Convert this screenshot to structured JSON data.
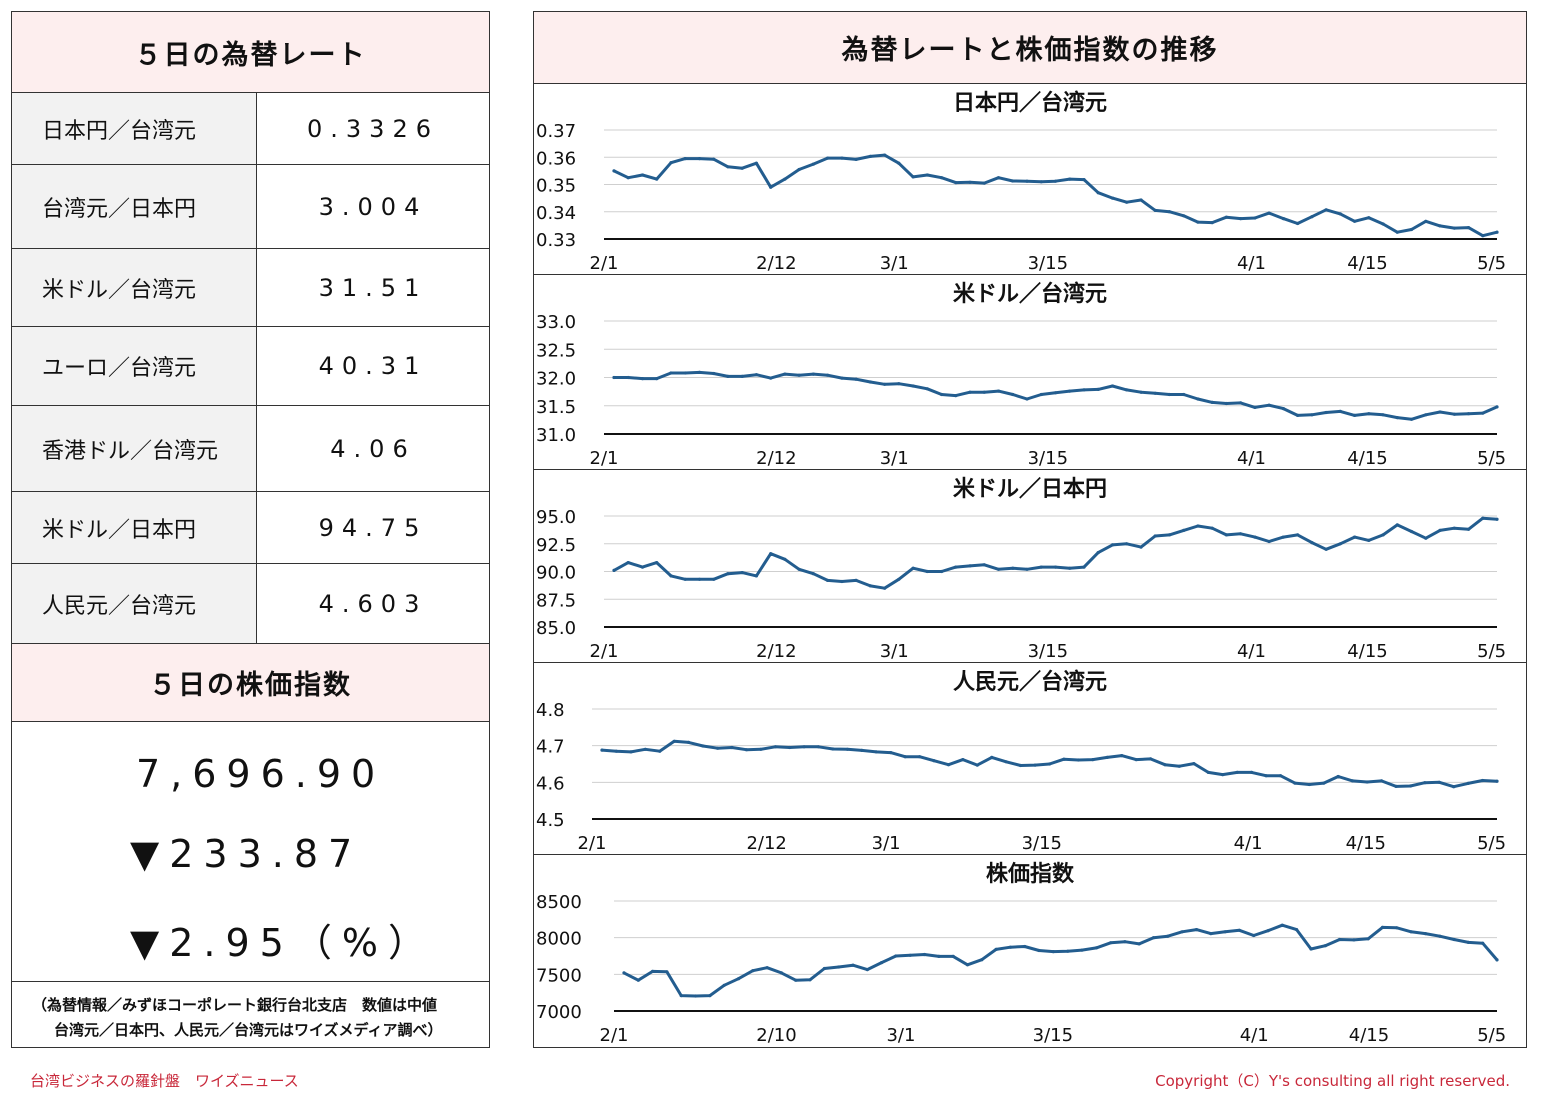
{
  "left": {
    "fx_title": "５日の為替レート",
    "rates": [
      {
        "name": "日本円／台湾元",
        "value": "0.3326"
      },
      {
        "name": "台湾元／日本円",
        "value": "3.004"
      },
      {
        "name": "米ドル／台湾元",
        "value": "31.51"
      },
      {
        "name": "ユーロ／台湾元",
        "value": "40.31"
      },
      {
        "name": "香港ドル／台湾元",
        "value": "4.06"
      },
      {
        "name": "米ドル／日本円",
        "value": "94.75"
      },
      {
        "name": "人民元／台湾元",
        "value": "4.603"
      }
    ],
    "stock_title": "５日の株価指数",
    "stock_value": "7,696.90",
    "stock_change": "▼233.87",
    "stock_pct": "▼2.95（%）",
    "source_line1": "（為替情報／みずほコーポレート銀行台北支店　数値は中値",
    "source_line2": "台湾元／日本円、人民元／台湾元はワイズメディア調べ）"
  },
  "right": {
    "title": "為替レートと株価指数の推移"
  },
  "footer": {
    "left": "台湾ビジネスの羅針盤　ワイズニュース",
    "right": "Copyright（C）Y's consulting all right reserved."
  },
  "colors": {
    "line": "#235d8f",
    "header_bg": "#fdeeee",
    "footer_text": "#c8283a"
  },
  "chart_data": [
    {
      "type": "line",
      "title": "日本円／台湾元",
      "x_ticks": [
        "2/1",
        "2/12",
        "3/1",
        "3/15",
        "4/1",
        "4/15",
        "5/5"
      ],
      "y_ticks": [
        "0.37",
        "0.36",
        "0.35",
        "0.34",
        "0.33"
      ],
      "ylim": [
        0.33,
        0.37
      ],
      "values": [
        0.355,
        0.3525,
        0.3535,
        0.352,
        0.358,
        0.3595,
        0.3595,
        0.3593,
        0.3565,
        0.356,
        0.3578,
        0.349,
        0.352,
        0.3555,
        0.3575,
        0.3597,
        0.3597,
        0.3592,
        0.3603,
        0.3608,
        0.3578,
        0.3528,
        0.3535,
        0.3525,
        0.3507,
        0.3508,
        0.3505,
        0.3525,
        0.3513,
        0.3512,
        0.351,
        0.3512,
        0.352,
        0.3518,
        0.347,
        0.345,
        0.3435,
        0.3443,
        0.3405,
        0.34,
        0.3385,
        0.3362,
        0.336,
        0.338,
        0.3375,
        0.3377,
        0.3395,
        0.3375,
        0.3357,
        0.3382,
        0.3407,
        0.3392,
        0.3365,
        0.3378,
        0.3355,
        0.3325,
        0.3335,
        0.3365,
        0.3348,
        0.334,
        0.3342,
        0.3312,
        0.3325
      ],
      "grid": true
    },
    {
      "type": "line",
      "title": "米ドル／台湾元",
      "x_ticks": [
        "2/1",
        "2/12",
        "3/1",
        "3/15",
        "4/1",
        "4/15",
        "5/5"
      ],
      "y_ticks": [
        "33.0",
        "32.5",
        "32.0",
        "31.5",
        "31.0"
      ],
      "ylim": [
        31.0,
        33.0
      ],
      "values": [
        32.0,
        32.0,
        31.98,
        31.98,
        32.08,
        32.08,
        32.09,
        32.07,
        32.02,
        32.02,
        32.05,
        31.99,
        32.06,
        32.04,
        32.06,
        32.04,
        31.99,
        31.97,
        31.92,
        31.88,
        31.89,
        31.85,
        31.8,
        31.7,
        31.68,
        31.74,
        31.74,
        31.76,
        31.7,
        31.62,
        31.7,
        31.73,
        31.76,
        31.78,
        31.79,
        31.85,
        31.78,
        31.74,
        31.72,
        31.7,
        31.7,
        31.62,
        31.56,
        31.54,
        31.55,
        31.47,
        31.51,
        31.45,
        31.33,
        31.34,
        31.38,
        31.4,
        31.33,
        31.36,
        31.34,
        31.29,
        31.26,
        31.34,
        31.39,
        31.35,
        31.36,
        31.37,
        31.48
      ],
      "grid": true
    },
    {
      "type": "line",
      "title": "米ドル／日本円",
      "x_ticks": [
        "2/1",
        "2/12",
        "3/1",
        "3/15",
        "4/1",
        "4/15",
        "5/5"
      ],
      "y_ticks": [
        "95.0",
        "92.5",
        "90.0",
        "87.5",
        "85.0"
      ],
      "ylim": [
        85.0,
        95.0
      ],
      "values": [
        90.1,
        90.8,
        90.4,
        90.8,
        89.6,
        89.3,
        89.3,
        89.3,
        89.8,
        89.9,
        89.6,
        91.6,
        91.1,
        90.2,
        89.8,
        89.2,
        89.1,
        89.2,
        88.7,
        88.5,
        89.3,
        90.3,
        90.0,
        90.0,
        90.4,
        90.5,
        90.6,
        90.2,
        90.3,
        90.2,
        90.4,
        90.4,
        90.3,
        90.4,
        91.7,
        92.4,
        92.5,
        92.2,
        93.2,
        93.3,
        93.7,
        94.1,
        93.9,
        93.3,
        93.4,
        93.1,
        92.7,
        93.1,
        93.3,
        92.6,
        92.0,
        92.5,
        93.1,
        92.8,
        93.3,
        94.2,
        93.6,
        93.0,
        93.7,
        93.9,
        93.8,
        94.8,
        94.7
      ],
      "grid": true
    },
    {
      "type": "line",
      "title": "人民元／台湾元",
      "x_ticks": [
        "2/1",
        "2/12",
        "3/1",
        "3/15",
        "4/1",
        "4/15",
        "5/5"
      ],
      "y_ticks": [
        "4.8",
        "4.7",
        "4.6",
        "4.5"
      ],
      "ylim": [
        4.5,
        4.8
      ],
      "values": [
        4.688,
        4.685,
        4.683,
        4.69,
        4.685,
        4.712,
        4.709,
        4.699,
        4.693,
        4.695,
        4.689,
        4.69,
        4.697,
        4.695,
        4.697,
        4.697,
        4.691,
        4.69,
        4.687,
        4.683,
        4.681,
        4.67,
        4.67,
        4.659,
        4.648,
        4.662,
        4.647,
        4.668,
        4.656,
        4.646,
        4.647,
        4.65,
        4.663,
        4.661,
        4.662,
        4.668,
        4.673,
        4.662,
        4.664,
        4.648,
        4.644,
        4.651,
        4.627,
        4.621,
        4.627,
        4.627,
        4.618,
        4.618,
        4.598,
        4.594,
        4.598,
        4.616,
        4.604,
        4.601,
        4.604,
        4.589,
        4.59,
        4.599,
        4.6,
        4.588,
        4.597,
        4.605,
        4.603
      ],
      "grid": true
    },
    {
      "type": "line",
      "title": "株価指数",
      "x_ticks": [
        "2/1",
        "2/10",
        "3/1",
        "3/15",
        "4/1",
        "4/15",
        "5/5"
      ],
      "y_ticks": [
        "8500",
        "8000",
        "7500",
        "7000"
      ],
      "ylim": [
        7000,
        8500
      ],
      "values": [
        7520,
        7420,
        7540,
        7535,
        7210,
        7205,
        7210,
        7350,
        7440,
        7550,
        7590,
        7520,
        7420,
        7425,
        7580,
        7600,
        7625,
        7565,
        7660,
        7750,
        7760,
        7770,
        7745,
        7745,
        7630,
        7700,
        7840,
        7870,
        7880,
        7825,
        7810,
        7815,
        7830,
        7860,
        7930,
        7945,
        7915,
        8000,
        8020,
        8080,
        8110,
        8055,
        8080,
        8100,
        8030,
        8095,
        8170,
        8110,
        7845,
        7890,
        7975,
        7970,
        7985,
        8140,
        8135,
        8080,
        8055,
        8020,
        7975,
        7935,
        7925,
        7697
      ],
      "grid": true
    }
  ]
}
